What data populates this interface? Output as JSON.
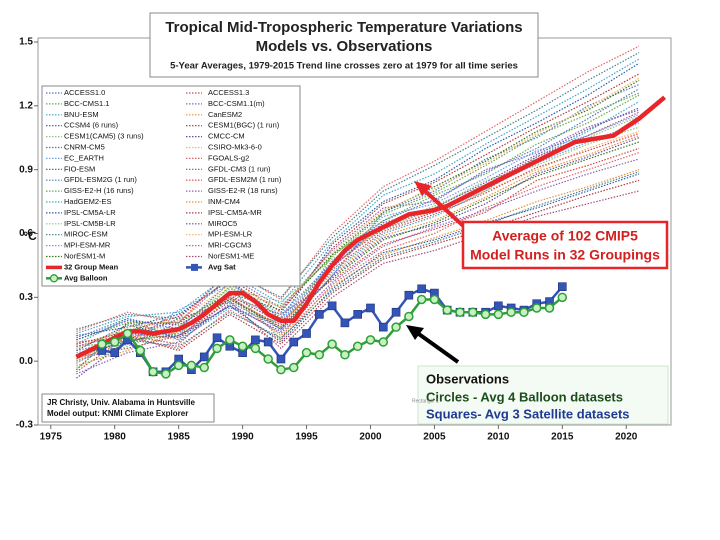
{
  "chart_data": {
    "type": "line",
    "title": "Tropical Mid-Tropospheric Temperature Variations",
    "subtitle": "Models vs. Observations",
    "note": "5-Year Averages, 1979-2015 Trend line crosses zero at 1979 for all time series",
    "y_label": "°C",
    "xlim": [
      1974,
      2023.5
    ],
    "xticks": [
      1975,
      1980,
      1985,
      1990,
      1995,
      2000,
      2005,
      2010,
      2015,
      2020
    ],
    "ylim": [
      -0.3,
      1.5
    ],
    "yticks": [
      -0.3,
      {
        "value": 0,
        "label": "0.0"
      },
      0.3,
      0.6,
      0.9,
      1.2,
      1.5
    ],
    "grid": false,
    "legend": "top-left",
    "x": [
      1977,
      1981,
      1985,
      1989,
      1993,
      1997,
      2001,
      2005,
      2009,
      2013,
      2017,
      2021
    ],
    "series": [
      {
        "name": "ACCESS1.0",
        "color": "#4e79c4",
        "style": "dotted",
        "values": [
          0.05,
          0.1,
          0.2,
          0.28,
          0.15,
          0.4,
          0.7,
          0.8,
          0.95,
          1.05,
          1.2,
          1.3
        ]
      },
      {
        "name": "ACCESS1.3",
        "color": "#d04a4a",
        "style": "dotted",
        "values": [
          -0.05,
          0.12,
          0.08,
          0.3,
          0.22,
          0.38,
          0.55,
          0.62,
          0.7,
          0.85,
          0.92,
          1.0
        ]
      },
      {
        "name": "BCC-CMS1.1",
        "color": "#6aa84f",
        "style": "dotted",
        "values": [
          0.1,
          0.18,
          0.12,
          0.35,
          0.1,
          0.5,
          0.66,
          0.78,
          0.88,
          1.02,
          1.12,
          1.25
        ]
      },
      {
        "name": "BCC-CSM1.1(m)",
        "color": "#8e63b8",
        "style": "dotted",
        "values": [
          0.0,
          0.08,
          0.18,
          0.4,
          0.25,
          0.52,
          0.72,
          0.75,
          0.9,
          0.98,
          1.1,
          1.18
        ]
      },
      {
        "name": "BNU-ESM",
        "color": "#3fa7c4",
        "style": "dotted",
        "values": [
          0.08,
          0.2,
          0.1,
          0.25,
          0.18,
          0.42,
          0.6,
          0.68,
          0.8,
          0.96,
          1.08,
          1.22
        ]
      },
      {
        "name": "CanESM2",
        "color": "#e69138",
        "style": "dotted",
        "values": [
          -0.02,
          0.05,
          0.14,
          0.3,
          0.12,
          0.35,
          0.5,
          0.58,
          0.66,
          0.75,
          0.82,
          0.9
        ]
      },
      {
        "name": "CCSM4 (6 runs)",
        "color": "#2b5ca8",
        "style": "dotted",
        "values": [
          0.12,
          0.16,
          0.22,
          0.38,
          0.2,
          0.55,
          0.75,
          0.85,
          1.0,
          1.12,
          1.25,
          1.4
        ]
      },
      {
        "name": "CESM1(BGC) (1 run)",
        "color": "#b03a3a",
        "style": "dotted",
        "values": [
          0.03,
          0.12,
          0.05,
          0.22,
          0.08,
          0.32,
          0.48,
          0.55,
          0.62,
          0.7,
          0.78,
          0.85
        ]
      },
      {
        "name": "CESM1(CAM5) (3 runs)",
        "color": "#93c47d",
        "style": "dotted",
        "values": [
          0.06,
          0.15,
          0.16,
          0.34,
          0.28,
          0.48,
          0.62,
          0.72,
          0.85,
          0.92,
          1.02,
          1.1
        ]
      },
      {
        "name": "CMCC-CM",
        "color": "#674ea7",
        "style": "dotted",
        "values": [
          -0.08,
          0.1,
          0.12,
          0.26,
          0.14,
          0.4,
          0.58,
          0.64,
          0.74,
          0.88,
          0.96,
          1.05
        ]
      },
      {
        "name": "CNRM-CM5",
        "color": "#45818e",
        "style": "dotted",
        "values": [
          0.15,
          0.22,
          0.2,
          0.42,
          0.3,
          0.58,
          0.8,
          0.92,
          1.05,
          1.18,
          1.32,
          1.45
        ]
      },
      {
        "name": "CSIRO-Mk3-6-0",
        "color": "#f6b26b",
        "style": "dotted",
        "values": [
          0.0,
          0.14,
          0.1,
          0.3,
          0.16,
          0.44,
          0.64,
          0.7,
          0.8,
          0.9,
          1.0,
          1.08
        ]
      },
      {
        "name": "EC_EARTH",
        "color": "#6d9eeb",
        "style": "dotted",
        "values": [
          0.04,
          0.08,
          0.24,
          0.36,
          0.22,
          0.46,
          0.68,
          0.74,
          0.86,
          0.99,
          1.06,
          1.16
        ]
      },
      {
        "name": "FGOALS-g2",
        "color": "#e06666",
        "style": "dotted",
        "values": [
          0.09,
          0.11,
          0.06,
          0.24,
          0.1,
          0.36,
          0.52,
          0.6,
          0.72,
          0.82,
          0.9,
          0.98
        ]
      },
      {
        "name": "FIO-ESM",
        "color": "#38761d",
        "style": "dotted",
        "values": [
          -0.04,
          0.18,
          0.18,
          0.32,
          0.24,
          0.5,
          0.7,
          0.82,
          0.94,
          1.08,
          1.18,
          1.32
        ]
      },
      {
        "name": "GFDL-CM3 (1 run)",
        "color": "#a64d79",
        "style": "dotted",
        "values": [
          0.02,
          0.06,
          0.12,
          0.28,
          0.06,
          0.3,
          0.46,
          0.52,
          0.6,
          0.68,
          0.74,
          0.8
        ]
      },
      {
        "name": "GFDL-ESM2G (1 run)",
        "color": "#4e79c4",
        "style": "dotted",
        "values": [
          0.11,
          0.2,
          0.15,
          0.37,
          0.2,
          0.47,
          0.66,
          0.76,
          0.89,
          1.0,
          1.14,
          1.28
        ]
      },
      {
        "name": "GFDL-ESM2M (1 run)",
        "color": "#d04a4a",
        "style": "dotted",
        "values": [
          0.01,
          0.13,
          0.19,
          0.29,
          0.17,
          0.43,
          0.61,
          0.69,
          0.79,
          0.91,
          0.99,
          1.07
        ]
      },
      {
        "name": "GISS-E2-H (16 runs)",
        "color": "#6aa84f",
        "style": "dotted",
        "values": [
          0.07,
          0.09,
          0.13,
          0.33,
          0.26,
          0.49,
          0.69,
          0.79,
          0.92,
          1.06,
          1.16,
          1.26
        ]
      },
      {
        "name": "GISS-E2-R (18 runs)",
        "color": "#8e63b8",
        "style": "dotted",
        "values": [
          -0.06,
          0.04,
          0.09,
          0.27,
          0.13,
          0.37,
          0.54,
          0.63,
          0.71,
          0.8,
          0.88,
          0.95
        ]
      },
      {
        "name": "HadGEM2-ES",
        "color": "#3fa7c4",
        "style": "dotted",
        "values": [
          0.13,
          0.21,
          0.23,
          0.41,
          0.27,
          0.56,
          0.78,
          0.88,
          1.02,
          1.15,
          1.28,
          1.42
        ]
      },
      {
        "name": "INM-CM4",
        "color": "#e69138",
        "style": "dotted",
        "values": [
          0.0,
          0.11,
          0.14,
          0.31,
          0.18,
          0.41,
          0.59,
          0.66,
          0.77,
          0.89,
          0.97,
          1.06
        ]
      },
      {
        "name": "IPSL-CM5A-LR",
        "color": "#2b5ca8",
        "style": "dotted",
        "values": [
          0.05,
          0.17,
          0.11,
          0.26,
          0.09,
          0.34,
          0.51,
          0.57,
          0.65,
          0.72,
          0.8,
          0.88
        ]
      },
      {
        "name": "IPSL-CM5A-MR",
        "color": "#b03a3a",
        "style": "dotted",
        "values": [
          0.08,
          0.14,
          0.21,
          0.39,
          0.23,
          0.53,
          0.74,
          0.84,
          0.97,
          1.1,
          1.22,
          1.35
        ]
      },
      {
        "name": "IPSL-CM5B-LR",
        "color": "#93c47d",
        "style": "dotted",
        "values": [
          -0.03,
          0.07,
          0.16,
          0.35,
          0.21,
          0.45,
          0.63,
          0.73,
          0.83,
          0.95,
          1.05,
          1.15
        ]
      },
      {
        "name": "MIROC5",
        "color": "#674ea7",
        "style": "dotted",
        "values": [
          0.1,
          0.19,
          0.17,
          0.3,
          0.15,
          0.44,
          0.65,
          0.72,
          0.84,
          0.97,
          1.09,
          1.19
        ]
      },
      {
        "name": "MIROC-ESM",
        "color": "#45818e",
        "style": "dotted",
        "values": [
          0.02,
          0.1,
          0.07,
          0.23,
          0.11,
          0.33,
          0.49,
          0.56,
          0.64,
          0.73,
          0.81,
          0.89
        ]
      },
      {
        "name": "MPI-ESM-LR",
        "color": "#f6b26b",
        "style": "dotted",
        "values": [
          0.06,
          0.16,
          0.19,
          0.36,
          0.25,
          0.51,
          0.71,
          0.81,
          0.93,
          1.07,
          1.19,
          1.33
        ]
      },
      {
        "name": "MPI-ESM-MR",
        "color": "#6d9eeb",
        "style": "dotted",
        "values": [
          -0.01,
          0.12,
          0.13,
          0.32,
          0.19,
          0.46,
          0.64,
          0.71,
          0.81,
          0.93,
          1.03,
          1.12
        ]
      },
      {
        "name": "MRI-CGCM3",
        "color": "#e06666",
        "style": "dotted",
        "values": [
          0.14,
          0.23,
          0.18,
          0.43,
          0.29,
          0.6,
          0.82,
          0.94,
          1.08,
          1.22,
          1.36,
          1.48
        ]
      },
      {
        "name": "NorESM1-M",
        "color": "#38761d",
        "style": "dotted",
        "values": [
          0.03,
          0.09,
          0.15,
          0.29,
          0.16,
          0.39,
          0.57,
          0.65,
          0.76,
          0.87,
          0.95,
          1.03
        ]
      },
      {
        "name": "NorESM1-ME",
        "color": "#a64d79",
        "style": "dotted",
        "values": [
          0.07,
          0.13,
          0.11,
          0.31,
          0.18,
          0.45,
          0.62,
          0.7,
          0.83,
          0.96,
          1.06,
          1.17
        ]
      },
      {
        "name": "32 Group Mean",
        "color": "#e8262a",
        "style": "thick",
        "x": [
          1977,
          1978,
          1979,
          1980,
          1981,
          1982,
          1983,
          1984,
          1985,
          1986,
          1987,
          1988,
          1989,
          1990,
          1991,
          1992,
          1993,
          1994,
          1995,
          1996,
          1997,
          1998,
          1999,
          2000,
          2001,
          2002,
          2003,
          2004,
          2005,
          2006,
          2007,
          2008,
          2009,
          2010,
          2011,
          2012,
          2013,
          2014,
          2015,
          2016,
          2017,
          2018,
          2019,
          2020,
          2021,
          2022,
          2023
        ],
        "values": [
          0.02,
          0.05,
          0.08,
          0.11,
          0.14,
          0.14,
          0.13,
          0.14,
          0.15,
          0.18,
          0.22,
          0.27,
          0.32,
          0.32,
          0.28,
          0.22,
          0.19,
          0.19,
          0.27,
          0.37,
          0.45,
          0.52,
          0.57,
          0.6,
          0.63,
          0.66,
          0.69,
          0.7,
          0.71,
          0.73,
          0.76,
          0.79,
          0.82,
          0.85,
          0.88,
          0.91,
          0.94,
          0.97,
          1.0,
          1.03,
          1.04,
          1.05,
          1.06,
          1.1,
          1.14,
          1.19,
          1.24
        ]
      },
      {
        "name": "Avg Sat",
        "color": "#3355b8",
        "style": "solid",
        "marker": "square",
        "x": [
          1979,
          1980,
          1981,
          1982,
          1983,
          1984,
          1985,
          1986,
          1987,
          1988,
          1989,
          1990,
          1991,
          1992,
          1993,
          1994,
          1995,
          1996,
          1997,
          1998,
          1999,
          2000,
          2001,
          2002,
          2003,
          2004,
          2005,
          2006,
          2007,
          2008,
          2009,
          2010,
          2011,
          2012,
          2013,
          2014,
          2015
        ],
        "values": [
          0.05,
          0.04,
          0.1,
          0.04,
          -0.05,
          -0.05,
          0.01,
          -0.04,
          0.02,
          0.11,
          0.07,
          0.04,
          0.1,
          0.09,
          0.01,
          0.09,
          0.13,
          0.22,
          0.26,
          0.18,
          0.22,
          0.25,
          0.16,
          0.23,
          0.31,
          0.34,
          0.32,
          0.24,
          0.23,
          0.23,
          0.23,
          0.26,
          0.25,
          0.24,
          0.27,
          0.28,
          0.35
        ]
      },
      {
        "name": "Avg Balloon",
        "color": "#2e9e3a",
        "style": "solid",
        "marker": "circle",
        "x": [
          1979,
          1980,
          1981,
          1982,
          1983,
          1984,
          1985,
          1986,
          1987,
          1988,
          1989,
          1990,
          1991,
          1992,
          1993,
          1994,
          1995,
          1996,
          1997,
          1998,
          1999,
          2000,
          2001,
          2002,
          2003,
          2004,
          2005,
          2006,
          2007,
          2008,
          2009,
          2010,
          2011,
          2012,
          2013,
          2014,
          2015
        ],
        "values": [
          0.08,
          0.09,
          0.13,
          0.05,
          -0.05,
          -0.06,
          -0.02,
          -0.02,
          -0.03,
          0.06,
          0.1,
          0.07,
          0.06,
          0.01,
          -0.04,
          -0.03,
          0.04,
          0.03,
          0.08,
          0.03,
          0.07,
          0.1,
          0.09,
          0.16,
          0.21,
          0.29,
          0.29,
          0.24,
          0.23,
          0.23,
          0.22,
          0.22,
          0.23,
          0.23,
          0.25,
          0.25,
          0.3
        ]
      }
    ],
    "annotations": {
      "model_box": [
        "Average of 102 CMIP5",
        "Model Runs in 32 Groupings"
      ],
      "obs_box": [
        "Observations",
        "Circles - Avg 4 Balloon datasets",
        "Squares- Avg 3 Satellite datasets"
      ],
      "credit": [
        "JR Christy, Univ. Alabama in Huntsville",
        "Model output: KNMI Climate Explorer"
      ],
      "shape_label": "Rectangle 1"
    }
  }
}
